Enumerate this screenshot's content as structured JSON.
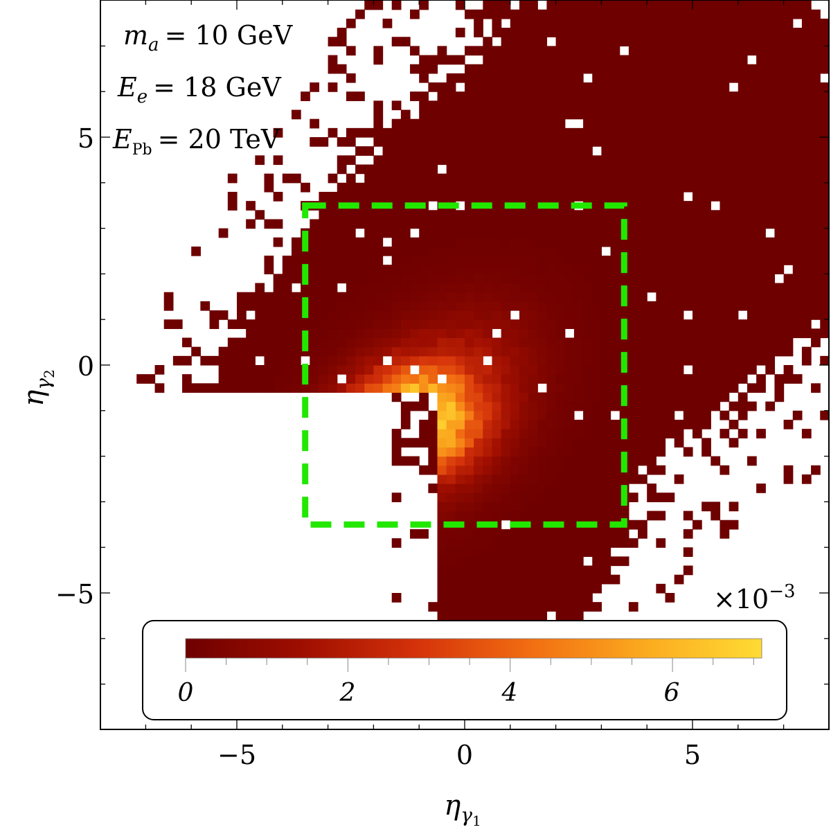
{
  "chart_data": {
    "type": "heatmap",
    "title": "",
    "xlabel_base": "η",
    "xlabel_sub": "γ",
    "xlabel_subsub": "1",
    "ylabel_base": "η",
    "ylabel_sub": "γ",
    "ylabel_subsub": "2",
    "xlim": [
      -8,
      8
    ],
    "ylim": [
      -8,
      8
    ],
    "x_ticks": [
      -5,
      0,
      5
    ],
    "y_ticks": [
      -5,
      0,
      5
    ],
    "x_tick_labels": [
      "−5",
      "0",
      "5"
    ],
    "y_tick_labels": [
      "−5",
      "0",
      "5"
    ],
    "bin_width": 0.2,
    "annotations": [
      {
        "lhs": "m",
        "lhs_sub": "a",
        "rhs": "= 10 GeV"
      },
      {
        "lhs": "E",
        "lhs_sub": "e",
        "rhs": "= 18 GeV"
      },
      {
        "lhs": "E",
        "lhs_sub": "Pb",
        "rhs": "= 20 TeV"
      }
    ],
    "cut_box": {
      "x_range": [
        -3.5,
        3.5
      ],
      "y_range": [
        -3.5,
        3.5
      ],
      "color": "#22e800",
      "style": "dashed"
    },
    "colorbar": {
      "range": [
        0,
        7.1
      ],
      "ticks": [
        0,
        2,
        4,
        6
      ],
      "tick_labels": [
        "0",
        "2",
        "4",
        "6"
      ],
      "multiplier_prefix": "×10",
      "multiplier_exp": "−3",
      "orientation": "horizontal",
      "position": "bottom",
      "colors": [
        "#6e0000",
        "#9e0e00",
        "#d4320a",
        "#f26e12",
        "#fbab1f",
        "#ffdb34"
      ]
    },
    "peak": {
      "x": -1.3,
      "y": -1.2,
      "value": 7.0
    }
  }
}
